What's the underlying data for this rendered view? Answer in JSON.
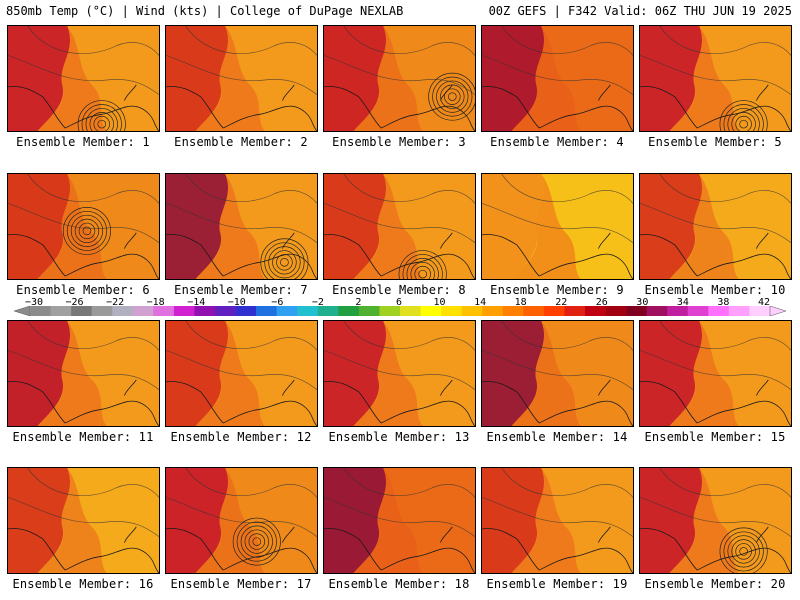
{
  "header": {
    "left_title": "850mb Temp (°C) | Wind (kts) | College of DuPage NEXLAB",
    "right_title": "00Z GEFS | F342 Valid: 06Z THU JUN 19 2025"
  },
  "colorbar": {
    "tick_labels": [
      "−30",
      "−26",
      "−22",
      "−18",
      "−14",
      "−10",
      "−6",
      "−2",
      "2",
      "6",
      "10",
      "14",
      "18",
      "22",
      "26",
      "30",
      "34",
      "38",
      "42"
    ],
    "colors": [
      "#8c8c8c",
      "#a0a0a0",
      "#787878",
      "#9a9a9a",
      "#b0b0c0",
      "#d0a0d0",
      "#e070e0",
      "#d020d0",
      "#9010b0",
      "#6020c0",
      "#3030d0",
      "#2070e0",
      "#30a0f0",
      "#20c0d0",
      "#20b090",
      "#20a040",
      "#50b030",
      "#a0d020",
      "#e0e020",
      "#ffff00",
      "#ffe000",
      "#ffc000",
      "#ffa000",
      "#ff8000",
      "#ff6000",
      "#ff4000",
      "#e02010",
      "#c00010",
      "#a00010",
      "#800020",
      "#a01060",
      "#c020a0",
      "#e040d0",
      "#ff70ff",
      "#ffa0ff",
      "#ffd0ff"
    ]
  },
  "panels": [
    {
      "label": "Ensemble Member: 1",
      "base": "#f39a1c",
      "hot": "#c4102a",
      "cyclone": true
    },
    {
      "label": "Ensemble Member: 2",
      "base": "#f39a1c",
      "hot": "#d42a1a",
      "cyclone": false
    },
    {
      "label": "Ensemble Member: 3",
      "base": "#ef8a1a",
      "hot": "#c81424",
      "cyclone": true
    },
    {
      "label": "Ensemble Member: 4",
      "base": "#ea6a18",
      "hot": "#a40c30",
      "cyclone": false
    },
    {
      "label": "Ensemble Member: 5",
      "base": "#f39a1c",
      "hot": "#c4102a",
      "cyclone": true
    },
    {
      "label": "Ensemble Member: 6",
      "base": "#ef8a1a",
      "hot": "#d42a1a",
      "cyclone": true
    },
    {
      "label": "Ensemble Member: 7",
      "base": "#f39a1c",
      "hot": "#8c0a3a",
      "cyclone": true
    },
    {
      "label": "Ensemble Member: 8",
      "base": "#f39a1c",
      "hot": "#d42a1a",
      "cyclone": true
    },
    {
      "label": "Ensemble Member: 9",
      "base": "#f7c018",
      "hot": "#f28a1c",
      "cyclone": false
    },
    {
      "label": "Ensemble Member: 10",
      "base": "#f5aa1c",
      "hot": "#d42a1a",
      "cyclone": false
    },
    {
      "label": "Ensemble Member: 11",
      "base": "#f39a1c",
      "hot": "#b80c2c",
      "cyclone": false
    },
    {
      "label": "Ensemble Member: 12",
      "base": "#f39a1c",
      "hot": "#d42a1a",
      "cyclone": false
    },
    {
      "label": "Ensemble Member: 13",
      "base": "#f39a1c",
      "hot": "#c4102a",
      "cyclone": false
    },
    {
      "label": "Ensemble Member: 14",
      "base": "#ef8a1a",
      "hot": "#8c0a3a",
      "cyclone": false
    },
    {
      "label": "Ensemble Member: 15",
      "base": "#f39a1c",
      "hot": "#c4102a",
      "cyclone": false
    },
    {
      "label": "Ensemble Member: 16",
      "base": "#f5aa1c",
      "hot": "#d42a1a",
      "cyclone": false
    },
    {
      "label": "Ensemble Member: 17",
      "base": "#ef8a1a",
      "hot": "#c4102a",
      "cyclone": true
    },
    {
      "label": "Ensemble Member: 18",
      "base": "#ea6a18",
      "hot": "#8c0a3a",
      "cyclone": false
    },
    {
      "label": "Ensemble Member: 19",
      "base": "#f39a1c",
      "hot": "#d42a1a",
      "cyclone": false
    },
    {
      "label": "Ensemble Member: 20",
      "base": "#f39a1c",
      "hot": "#c4102a",
      "cyclone": true
    }
  ]
}
